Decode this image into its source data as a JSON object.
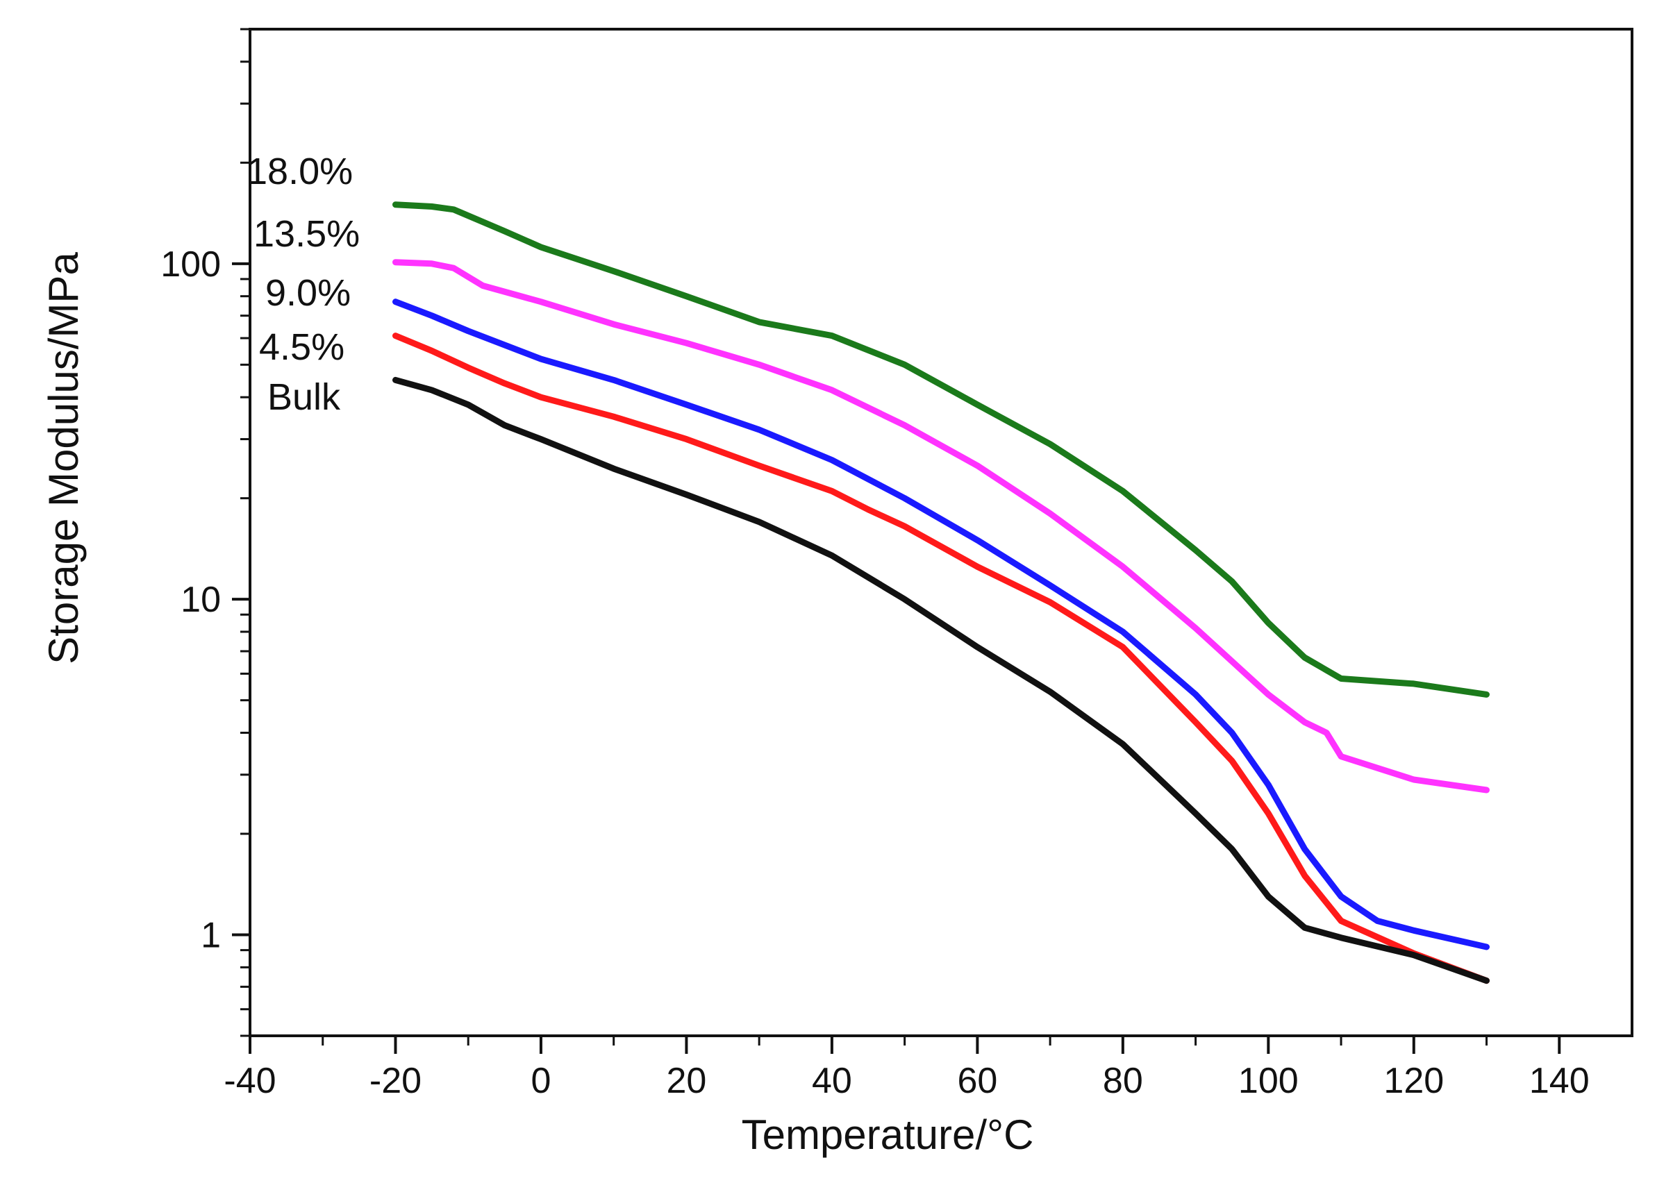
{
  "chart_data": {
    "type": "line",
    "title": "",
    "xlabel": "Temperature/",
    "xlabel_unit": "°C",
    "ylabel": "Storage Modulus/MPa",
    "xlim": [
      -40,
      150
    ],
    "ylim": [
      0.5,
      500
    ],
    "yscale": "log",
    "x_ticks": [
      -40,
      -20,
      0,
      20,
      40,
      60,
      80,
      100,
      120,
      140
    ],
    "x_tick_labels": [
      "-40",
      "-20",
      "0",
      "20",
      "40",
      "60",
      "80",
      "100",
      "120",
      "140"
    ],
    "y_ticks": [
      1,
      10,
      100
    ],
    "y_tick_labels": [
      "1",
      "10",
      "100"
    ],
    "grid": false,
    "series": [
      {
        "name": "18.0%",
        "color": "#1b7a1b",
        "x": [
          -20,
          -15,
          -12,
          -5,
          0,
          10,
          20,
          30,
          40,
          50,
          60,
          70,
          80,
          90,
          95,
          100,
          105,
          110,
          120,
          130
        ],
        "y": [
          150,
          148,
          145,
          125,
          112,
          95,
          80,
          67,
          61,
          50,
          38,
          29,
          21,
          14,
          11.3,
          8.5,
          6.7,
          5.8,
          5.6,
          5.2
        ]
      },
      {
        "name": "13.5%",
        "color": "#ff33ff",
        "x": [
          -20,
          -15,
          -12,
          -8,
          0,
          10,
          20,
          30,
          40,
          50,
          60,
          70,
          80,
          90,
          100,
          105,
          108,
          110,
          120,
          130
        ],
        "y": [
          101,
          100,
          97,
          86,
          77,
          66,
          58,
          50,
          42,
          33,
          25,
          18,
          12.5,
          8.2,
          5.2,
          4.3,
          4.0,
          3.4,
          2.9,
          2.7
        ]
      },
      {
        "name": "9.0%",
        "color": "#1a1aff",
        "x": [
          -20,
          -15,
          -10,
          0,
          10,
          20,
          30,
          40,
          50,
          60,
          70,
          80,
          90,
          95,
          100,
          105,
          110,
          115,
          120,
          130
        ],
        "y": [
          77,
          70,
          63,
          52,
          45,
          38,
          32,
          26,
          20,
          15,
          11,
          8,
          5.2,
          4.0,
          2.8,
          1.8,
          1.3,
          1.1,
          1.03,
          0.92
        ]
      },
      {
        "name": "4.5%",
        "color": "#ff1a1a",
        "x": [
          -20,
          -15,
          -10,
          -5,
          0,
          10,
          20,
          30,
          40,
          45,
          50,
          60,
          70,
          80,
          90,
          95,
          100,
          105,
          110,
          120,
          130
        ],
        "y": [
          61,
          55,
          49,
          44,
          40,
          35,
          30,
          25,
          21,
          18.5,
          16.5,
          12.5,
          9.8,
          7.2,
          4.3,
          3.3,
          2.3,
          1.5,
          1.1,
          0.88,
          0.73
        ]
      },
      {
        "name": "Bulk",
        "color": "#111111",
        "x": [
          -20,
          -15,
          -10,
          -5,
          0,
          10,
          20,
          30,
          40,
          50,
          60,
          70,
          80,
          90,
          95,
          100,
          105,
          110,
          120,
          130
        ],
        "y": [
          45,
          42,
          38,
          33,
          30,
          24.5,
          20.5,
          17,
          13.5,
          10,
          7.2,
          5.3,
          3.7,
          2.3,
          1.8,
          1.3,
          1.05,
          0.98,
          0.87,
          0.73
        ]
      }
    ],
    "annotations": [
      "18.0%",
      "13.5%",
      "9.0%",
      "4.5%",
      "Bulk"
    ]
  }
}
